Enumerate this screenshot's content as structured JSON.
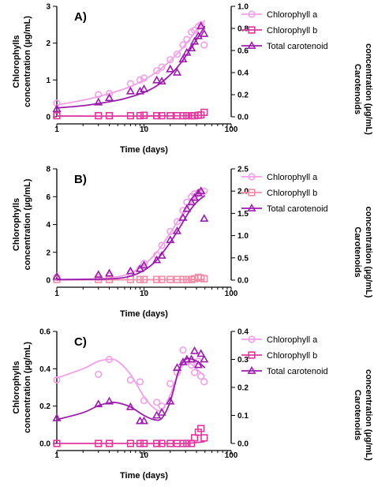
{
  "chart_data": [
    {
      "type": "scatter",
      "panel_label": "A)",
      "xlabel": "Time (days)",
      "ylabel_left": [
        "Chlorophylls",
        "concentration (µg/mL)"
      ],
      "ylabel_right": [
        "Carotenoids",
        "concentration (µg/mL)"
      ],
      "x_scale": "log",
      "xlim": [
        1,
        100
      ],
      "x_ticks": [
        1,
        10,
        100
      ],
      "ylim_left": [
        0,
        3
      ],
      "y_ticks_left": [
        0,
        1,
        2,
        3
      ],
      "ylim_right": [
        0,
        1.0
      ],
      "y_ticks_right": [
        "0.0",
        "0.2",
        "0.4",
        "0.6",
        "0.8",
        "1.0"
      ],
      "legend_position": "top-right",
      "series": [
        {
          "name": "Chlorophyll a",
          "color": "#f0a0e6",
          "marker": "circle",
          "axis": "left",
          "x": [
            1,
            3,
            4,
            7,
            9,
            10,
            14,
            16,
            20,
            24,
            28,
            31,
            35,
            38,
            42,
            45,
            49
          ],
          "y": [
            0.37,
            0.6,
            0.63,
            0.9,
            1.0,
            1.05,
            1.25,
            1.35,
            1.55,
            1.7,
            1.95,
            2.1,
            2.3,
            2.35,
            2.45,
            2.5,
            1.95
          ],
          "fit_x": [
            1,
            2,
            3,
            5,
            7,
            10,
            14,
            20,
            26,
            32,
            38,
            44,
            50
          ],
          "fit_y": [
            0.32,
            0.45,
            0.55,
            0.7,
            0.82,
            1.0,
            1.22,
            1.52,
            1.8,
            2.05,
            2.28,
            2.48,
            2.62
          ]
        },
        {
          "name": "Chlorophyll b",
          "color": "#e0389e",
          "marker": "square",
          "axis": "left",
          "x": [
            1,
            3,
            4,
            7,
            9,
            10,
            14,
            16,
            20,
            24,
            28,
            31,
            35,
            38,
            42,
            45,
            49
          ],
          "y": [
            0.03,
            0.03,
            0.03,
            0.03,
            0.03,
            0.04,
            0.03,
            0.03,
            0.03,
            0.03,
            0.03,
            0.03,
            0.03,
            0.03,
            0.04,
            0.05,
            0.12
          ],
          "fit_x": [
            1,
            10,
            30,
            50
          ],
          "fit_y": [
            0.02,
            0.02,
            0.03,
            0.04
          ]
        },
        {
          "name": "Total carotenoid",
          "color": "#9c1dad",
          "marker": "triangle",
          "axis": "right",
          "x": [
            1,
            3,
            4,
            7,
            9,
            10,
            14,
            16,
            20,
            24,
            28,
            31,
            35,
            38,
            42,
            45,
            49
          ],
          "y": [
            0.07,
            0.13,
            0.17,
            0.23,
            0.23,
            0.25,
            0.33,
            0.32,
            0.43,
            0.4,
            0.52,
            0.58,
            0.62,
            0.68,
            0.73,
            0.82,
            0.75
          ],
          "fit_x": [
            1,
            2,
            3,
            5,
            7,
            10,
            14,
            20,
            26,
            32,
            38,
            44,
            50
          ],
          "fit_y": [
            0.08,
            0.1,
            0.12,
            0.15,
            0.18,
            0.22,
            0.28,
            0.38,
            0.48,
            0.58,
            0.67,
            0.75,
            0.82
          ]
        }
      ]
    },
    {
      "type": "scatter",
      "panel_label": "B)",
      "xlabel": "Time (days)",
      "ylabel_left": [
        "Chlorophylls",
        "concentration (µg/mL)"
      ],
      "ylabel_right": [
        "Carotenoids",
        "concentration (µg/mL)"
      ],
      "x_scale": "log",
      "xlim": [
        1,
        100
      ],
      "x_ticks": [
        1,
        10,
        100
      ],
      "ylim_left": [
        0,
        8
      ],
      "y_ticks_left": [
        0,
        2,
        4,
        6,
        8
      ],
      "ylim_right": [
        0,
        2.5
      ],
      "y_ticks_right": [
        "0.0",
        "0.5",
        "1.0",
        "1.5",
        "2.0",
        "2.5"
      ],
      "legend_position": "top-right",
      "series": [
        {
          "name": "Chlorophyll a",
          "color": "#f0a0e6",
          "marker": "circle",
          "axis": "left",
          "x": [
            1,
            3,
            4,
            7,
            9,
            10,
            14,
            16,
            20,
            24,
            28,
            31,
            35,
            38,
            42,
            45,
            49
          ],
          "y": [
            0.2,
            0.2,
            0.3,
            0.5,
            0.8,
            1.2,
            1.8,
            2.5,
            3.5,
            4.2,
            5.0,
            5.6,
            6.0,
            6.2,
            6.3,
            6.3,
            6.4
          ],
          "fit_x": [
            1,
            3,
            5,
            7,
            10,
            14,
            20,
            26,
            32,
            38,
            44,
            50
          ],
          "fit_y": [
            0.05,
            0.1,
            0.25,
            0.5,
            1.1,
            2.0,
            3.4,
            4.5,
            5.3,
            5.8,
            6.1,
            6.3
          ]
        },
        {
          "name": "Chlorophyll b",
          "color": "#f08ca8",
          "marker": "square",
          "axis": "left",
          "x": [
            1,
            3,
            4,
            7,
            9,
            10,
            14,
            16,
            20,
            24,
            28,
            31,
            35,
            38,
            42,
            45,
            49
          ],
          "y": [
            0.05,
            0.05,
            0.05,
            0.05,
            0.05,
            0.05,
            0.05,
            0.05,
            0.05,
            0.05,
            0.05,
            0.05,
            0.05,
            0.1,
            0.2,
            0.15,
            0.1
          ],
          "fit_x": [
            1,
            10,
            30,
            50
          ],
          "fit_y": [
            0.02,
            0.03,
            0.04,
            0.05
          ]
        },
        {
          "name": "Total carotenoid",
          "color": "#9c1dad",
          "marker": "triangle",
          "axis": "right",
          "x": [
            1,
            3,
            4,
            7,
            9,
            10,
            14,
            16,
            20,
            24,
            28,
            31,
            35,
            38,
            42,
            45,
            49
          ],
          "y": [
            0.08,
            0.12,
            0.15,
            0.2,
            0.25,
            0.33,
            0.45,
            0.55,
            0.9,
            1.1,
            1.4,
            1.6,
            1.75,
            1.85,
            1.95,
            2.0,
            1.38
          ],
          "fit_x": [
            1,
            3,
            5,
            7,
            10,
            14,
            20,
            26,
            32,
            38,
            44,
            50
          ],
          "fit_y": [
            0.01,
            0.02,
            0.04,
            0.09,
            0.22,
            0.45,
            0.85,
            1.2,
            1.5,
            1.7,
            1.82,
            1.9
          ]
        }
      ]
    },
    {
      "type": "scatter",
      "panel_label": "C)",
      "xlabel": "Time (days)",
      "ylabel_left": [
        "Chlorophylls",
        "concentration (µg/mL)"
      ],
      "ylabel_right": [
        "Carotenoids",
        "concentration (µg/mL)"
      ],
      "x_scale": "log",
      "xlim": [
        1,
        100
      ],
      "x_ticks": [
        1,
        10,
        100
      ],
      "ylim_left": [
        0,
        0.6
      ],
      "y_ticks_left": [
        "0.0",
        "0.2",
        "0.4",
        "0.6"
      ],
      "ylim_right": [
        0,
        0.4
      ],
      "y_ticks_right": [
        "0.0",
        "0.1",
        "0.2",
        "0.3",
        "0.4"
      ],
      "legend_position": "top-right",
      "series": [
        {
          "name": "Chlorophyll a",
          "color": "#f0a0e6",
          "marker": "circle",
          "axis": "left",
          "x": [
            1,
            3,
            4,
            7,
            9,
            10,
            14,
            16,
            20,
            24,
            28,
            31,
            35,
            38,
            42,
            45,
            49
          ],
          "y": [
            0.34,
            0.37,
            0.45,
            0.34,
            0.33,
            0.23,
            0.22,
            0.2,
            0.32,
            0.38,
            0.5,
            0.44,
            0.42,
            0.38,
            0.44,
            0.36,
            0.33
          ],
          "fit_x": [
            1,
            2,
            3,
            4,
            5,
            7,
            10,
            13,
            16,
            20,
            25,
            30,
            36,
            42,
            50
          ],
          "fit_y": [
            0.35,
            0.4,
            0.44,
            0.45,
            0.44,
            0.37,
            0.25,
            0.19,
            0.18,
            0.26,
            0.38,
            0.43,
            0.42,
            0.39,
            0.36
          ]
        },
        {
          "name": "Chlorophyll b",
          "color": "#e0389e",
          "marker": "square",
          "axis": "left",
          "x": [
            1,
            3,
            4,
            7,
            9,
            10,
            14,
            16,
            20,
            24,
            28,
            31,
            35,
            38,
            42,
            45,
            49
          ],
          "y": [
            0.0,
            0.0,
            0.0,
            0.0,
            0.0,
            0.0,
            0.0,
            0.0,
            0.0,
            0.0,
            0.0,
            0.0,
            0.0,
            0.03,
            0.06,
            0.08,
            0.03
          ],
          "fit_x": [
            1,
            10,
            30,
            50
          ],
          "fit_y": [
            0.0,
            0.0,
            0.0,
            0.01
          ]
        },
        {
          "name": "Total carotenoid",
          "color": "#9c1dad",
          "marker": "triangle",
          "axis": "right",
          "x": [
            1,
            3,
            4,
            7,
            9,
            10,
            14,
            16,
            20,
            24,
            28,
            31,
            35,
            38,
            42,
            45,
            49
          ],
          "y": [
            0.09,
            0.14,
            0.15,
            0.13,
            0.08,
            0.08,
            0.1,
            0.11,
            0.15,
            0.27,
            0.29,
            0.3,
            0.3,
            0.33,
            0.28,
            0.32,
            0.3
          ],
          "fit_x": [
            1,
            2,
            3,
            4,
            5,
            7,
            10,
            13,
            16,
            20,
            25,
            30,
            36,
            42,
            50
          ],
          "fit_y": [
            0.085,
            0.11,
            0.135,
            0.145,
            0.145,
            0.13,
            0.1,
            0.085,
            0.09,
            0.15,
            0.26,
            0.3,
            0.3,
            0.29,
            0.27
          ]
        }
      ]
    }
  ]
}
